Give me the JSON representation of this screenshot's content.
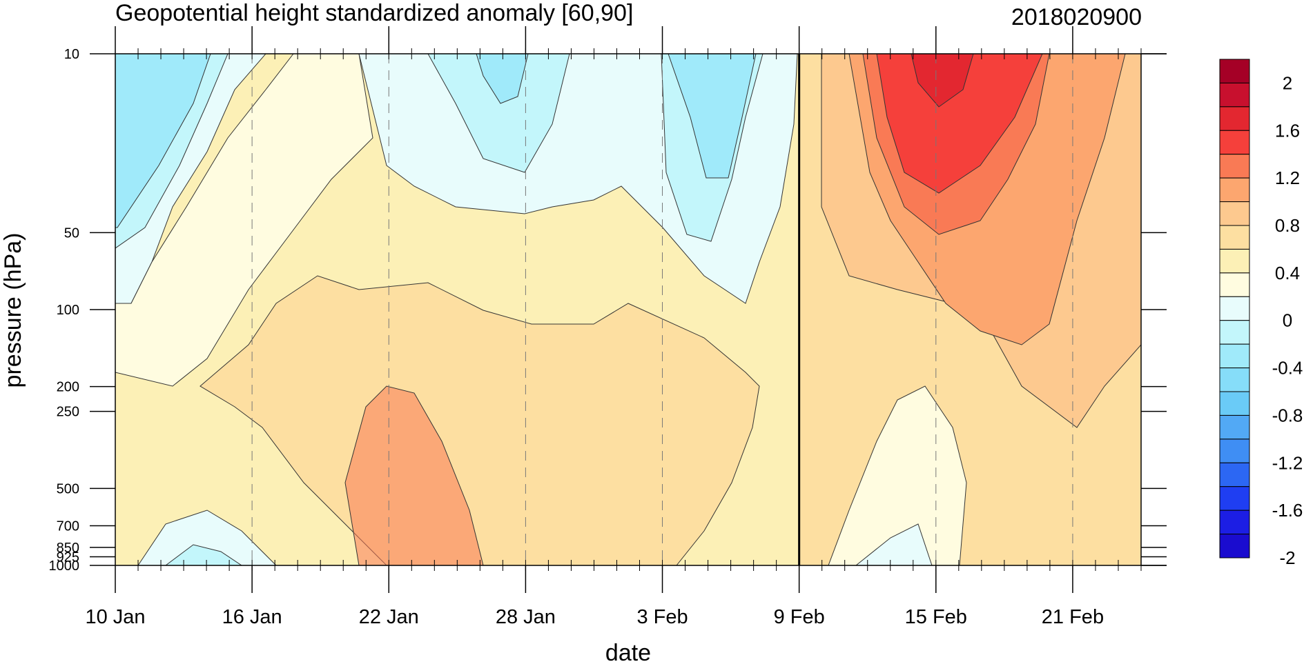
{
  "chart_data": {
    "type": "heatmap",
    "title": "Geopotential height standardized anomaly [60,90]",
    "subtitle": "2018020900",
    "xlabel": "date",
    "ylabel": "pressure (hPa)",
    "x_range_days_since_10jan": [
      0,
      45
    ],
    "x_ticks": [
      {
        "label": "10 Jan",
        "day": 0
      },
      {
        "label": "16 Jan",
        "day": 6
      },
      {
        "label": "22 Jan",
        "day": 12
      },
      {
        "label": "28 Jan",
        "day": 18
      },
      {
        "label": "3 Feb",
        "day": 24
      },
      {
        "label": "9 Feb",
        "day": 30
      },
      {
        "label": "15 Feb",
        "day": 36
      },
      {
        "label": "21 Feb",
        "day": 42
      }
    ],
    "y_scale": "log",
    "y_range": [
      1000,
      10
    ],
    "y_ticks": [
      10,
      50,
      100,
      200,
      250,
      500,
      700,
      850,
      925,
      1000
    ],
    "y_tick_labels": [
      "10",
      "50",
      "100",
      "200",
      "250",
      "500",
      "700",
      "850",
      "925",
      "1000"
    ],
    "analysis_date_line": "9 Feb",
    "colorbar": {
      "labels": [
        "2",
        "1.6",
        "1.2",
        "0.8",
        "0.4",
        "0",
        "-0.4",
        "-0.8",
        "-1.2",
        "-1.6",
        "-2"
      ],
      "colors": [
        "#a50026",
        "#c8102e",
        "#e32730",
        "#f5403b",
        "#f97a55",
        "#fca66f",
        "#fdc98f",
        "#fddfa1",
        "#fcf0b6",
        "#fffce0",
        "#e8fcfc",
        "#c3f6fb",
        "#a0eafa",
        "#86ddf9",
        "#6acbf7",
        "#52a9f5",
        "#3f8ef4",
        "#2c67f3",
        "#1f3ef2",
        "#1c1ee4",
        "#1a0ccf"
      ]
    },
    "regions": [
      {
        "name": "positive-background-band",
        "value": 0.4,
        "color": "#fcf0b6"
      },
      {
        "name": "near-zero-band",
        "value": 0.1,
        "color": "#fffce0"
      },
      {
        "name": "mid-level-positive",
        "value": 0.6,
        "color": "#fddfa1"
      },
      {
        "name": "negative-upper-left",
        "value": -0.4,
        "color": "#c3f6fb"
      },
      {
        "name": "negative-upper-center",
        "value": -0.2,
        "color": "#e8fcfc"
      },
      {
        "name": "warm-anomaly-right",
        "value": 1.4,
        "color": "#f5403b"
      }
    ]
  }
}
